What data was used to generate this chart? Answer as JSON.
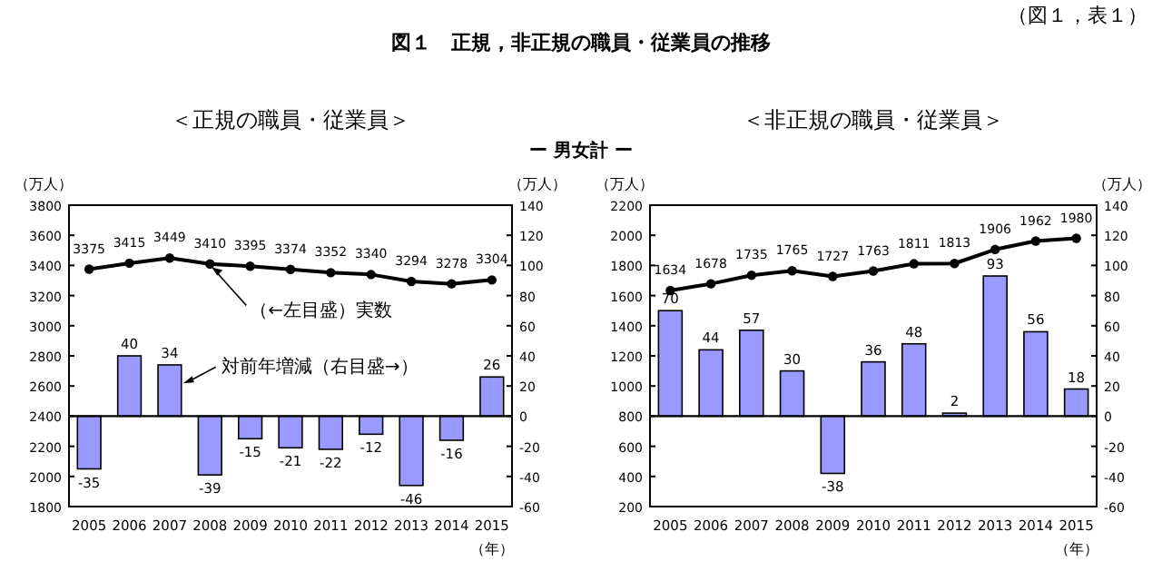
{
  "chart_data": [
    {
      "type": "bar",
      "title": "＜正規の職員・従業員＞",
      "categories": [
        "2005",
        "2006",
        "2007",
        "2008",
        "2009",
        "2010",
        "2011",
        "2012",
        "2013",
        "2014",
        "2015"
      ],
      "xlabel": "（年）",
      "ylabel": "（万人）",
      "y2label": "（万人）",
      "series": [
        {
          "axis": "y2",
          "color": "#9999ff",
          "values": [
            -35,
            40,
            34,
            -39,
            -15,
            -21,
            -22,
            -12,
            -46,
            -16,
            26
          ]
        },
        {
          "type": "line",
          "color": "#000000",
          "marker": "circle",
          "values": [
            3375,
            3415,
            3449,
            3410,
            3395,
            3374,
            3352,
            3340,
            3294,
            3278,
            3304
          ]
        }
      ],
      "ylim": [
        1800,
        3800
      ],
      "yticks": [
        1800,
        2000,
        2200,
        2400,
        2600,
        2800,
        3000,
        3200,
        3400,
        3600,
        3800
      ],
      "y2lim": [
        -60,
        140
      ],
      "y2ticks": [
        -60,
        -40,
        -20,
        0,
        20,
        40,
        60,
        80,
        100,
        120,
        140
      ],
      "data_labels": true,
      "annotations": [
        "図１　正規，非正規の職員・従業員の推移",
        "（図１，表１）",
        "ー 男女計 ー",
        {
          "text": "（←左目盛）実数",
          "x": "2008",
          "y": 3400
        },
        "対前年増減（右目盛→）"
      ]
    },
    {
      "type": "bar",
      "title": "＜非正規の職員・従業員＞",
      "categories": [
        "2005",
        "2006",
        "2007",
        "2008",
        "2009",
        "2010",
        "2011",
        "2012",
        "2013",
        "2014",
        "2015"
      ],
      "xlabel": "（年）",
      "ylabel": "（万人）",
      "y2label": "（万人）",
      "series": [
        {
          "axis": "y2",
          "color": "#9999ff",
          "values": [
            70,
            44,
            57,
            30,
            -38,
            36,
            48,
            2,
            93,
            56,
            18
          ]
        },
        {
          "type": "line",
          "color": "#000000",
          "marker": "circle",
          "values": [
            1634,
            1678,
            1735,
            1765,
            1727,
            1763,
            1811,
            1813,
            1906,
            1962,
            1980
          ]
        }
      ],
      "ylim": [
        200,
        2200
      ],
      "yticks": [
        200,
        400,
        600,
        800,
        1000,
        1200,
        1400,
        1600,
        1800,
        2000,
        2200
      ],
      "y2lim": [
        -60,
        140
      ],
      "y2ticks": [
        -60,
        -40,
        -20,
        0,
        20,
        40,
        60,
        80,
        100,
        120,
        140
      ],
      "data_labels": true
    }
  ]
}
